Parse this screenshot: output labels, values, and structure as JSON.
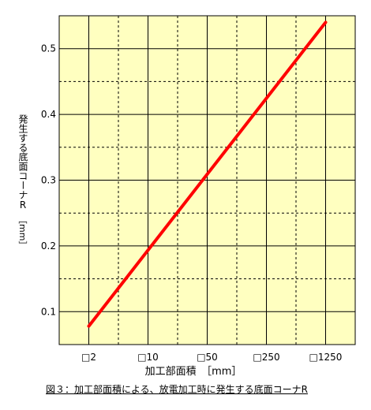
{
  "chart_data": {
    "type": "line",
    "x_ticks": [
      "□2",
      "□10",
      "□50",
      "□250",
      "□1250"
    ],
    "y_ticks": [
      "0.1",
      "0.2",
      "0.3",
      "0.4",
      "0.5"
    ],
    "ylim": [
      0.05,
      0.55
    ],
    "series": [
      {
        "x": [
          "□2",
          "□1250"
        ],
        "values": [
          0.078,
          0.54
        ]
      }
    ],
    "ylabel": "発生する底面コーナR",
    "ylabel_unit": "［mm］",
    "xlabel": "加工部面積　［mm］",
    "caption": "図３：加工部面積による、放電加工時に発生する底面コーナR",
    "grid": true,
    "colors": {
      "background": "#ffffc0",
      "line": "#ff0000",
      "grid": "#000000"
    }
  }
}
